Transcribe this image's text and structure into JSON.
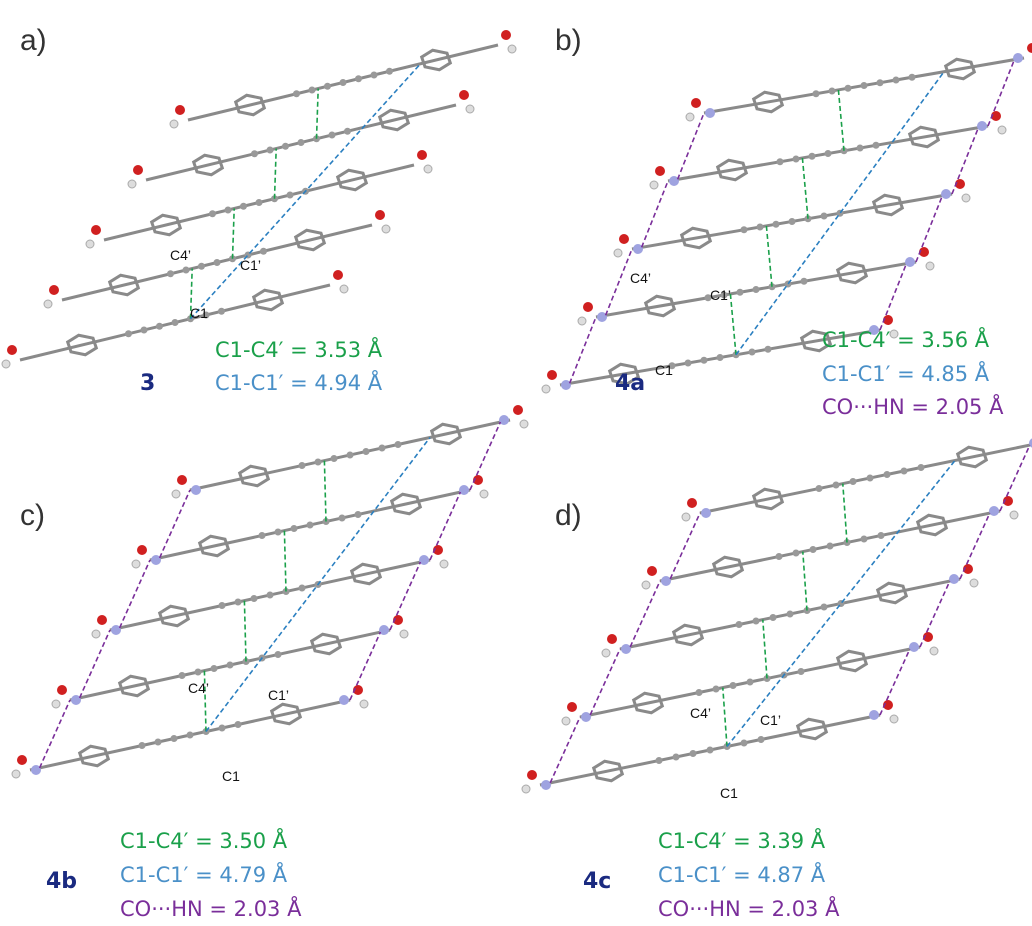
{
  "panels": [
    {
      "label": "a)",
      "compound": "3",
      "atoms": [
        "C4’",
        "C1’",
        "C1"
      ],
      "distances": [
        "C1-C4′ = 3.53 Å",
        "C1-C1′ = 4.94 Å"
      ]
    },
    {
      "label": "b)",
      "compound": "4a",
      "atoms": [
        "C4’",
        "C1’",
        "C1"
      ],
      "distances": [
        "C1-C4′ = 3.56 Å",
        "C1-C1′ = 4.85 Å",
        "CO···HN = 2.05 Å"
      ]
    },
    {
      "label": "c)",
      "compound": "4b",
      "atoms": [
        "C4’",
        "C1’",
        "C1"
      ],
      "distances": [
        "C1-C4′ = 3.50 Å",
        "C1-C1′ = 4.79 Å",
        "CO···HN = 2.03 Å"
      ]
    },
    {
      "label": "d)",
      "compound": "4c",
      "atoms": [
        "C4’",
        "C1’",
        "C1"
      ],
      "distances": [
        "C1-C4′ = 3.39 Å",
        "C1-C1′ = 4.87 Å",
        "CO···HN = 2.03 Å"
      ]
    }
  ]
}
